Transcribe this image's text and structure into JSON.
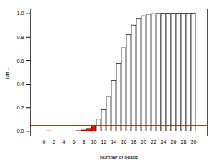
{
  "chart_data": {
    "type": "bar",
    "x_label": "Number of heads",
    "y_label": "cdf",
    "categories": [
      "0",
      null,
      "2",
      null,
      "4",
      null,
      "6",
      null,
      "8",
      null,
      "10",
      null,
      "12",
      null,
      "14",
      null,
      "16",
      null,
      "18",
      null,
      "20",
      null,
      "22",
      null,
      "24",
      null,
      "26",
      null,
      "28",
      null,
      "30"
    ],
    "values": [
      9e-10,
      3e-08,
      4e-07,
      4e-06,
      3e-05,
      0.00016,
      0.0007,
      0.0026,
      0.008,
      0.021,
      0.049,
      0.1,
      0.181,
      0.292,
      0.428,
      0.572,
      0.708,
      0.819,
      0.9,
      0.951,
      0.979,
      0.992,
      0.997,
      0.999,
      1.0,
      1.0,
      1.0,
      1.0,
      1.0,
      1.0,
      1.0
    ],
    "colors": [
      "#ff0000",
      "#ff0000",
      "#ff0000",
      "#ff0000",
      "#ff0000",
      "#ff0000",
      "#ff0000",
      "#ff0000",
      "#ff0000",
      "#ff0000",
      "#ff0000",
      "#ffffff",
      "#ffffff",
      "#ffffff",
      "#ffffff",
      "#ffffff",
      "#ffffff",
      "#ffffff",
      "#ffffff",
      "#ffffff",
      "#ffffff",
      "#ffffff",
      "#ffffff",
      "#ffffff",
      "#ffffff",
      "#ffffff",
      "#ffffff",
      "#ffffff",
      "#ffffff",
      "#ffffff",
      "#ffffff"
    ],
    "threshold": 0.05,
    "ylim": [
      -0.04,
      1.04
    ],
    "yticks": [
      {
        "value": 0,
        "label": "0.0"
      },
      {
        "value": 0.2,
        "label": "0.2"
      },
      {
        "value": 0.4,
        "label": "0.4"
      },
      {
        "value": 0.6,
        "label": "0.6"
      },
      {
        "value": 0.8,
        "label": "0.8"
      },
      {
        "value": 1,
        "label": "1.0"
      }
    ]
  }
}
